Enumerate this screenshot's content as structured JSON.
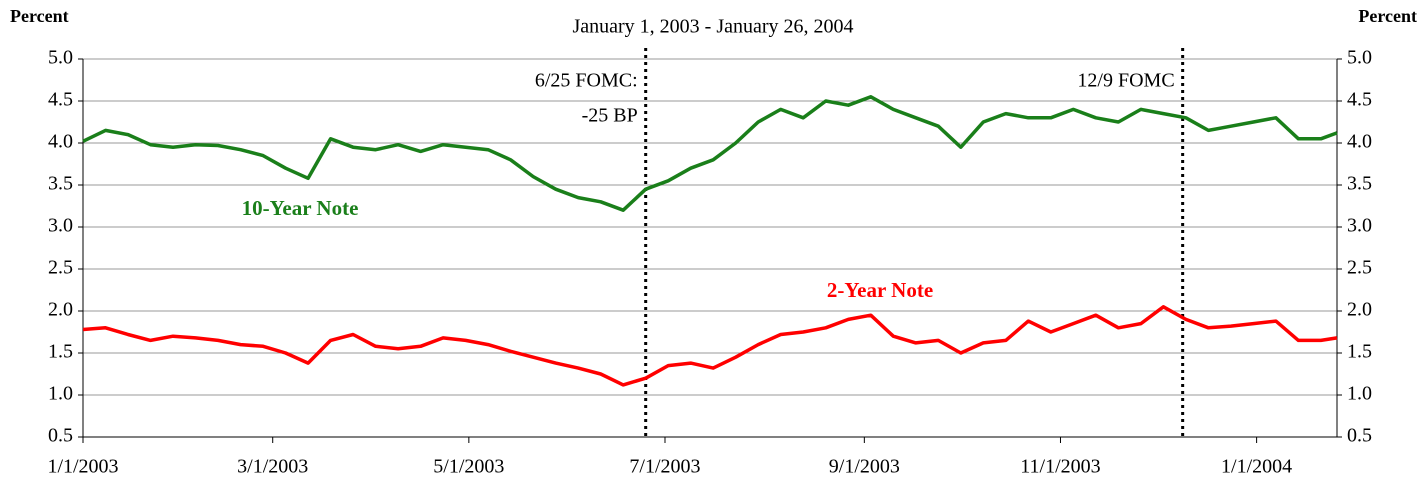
{
  "chart_data": {
    "type": "line",
    "subtitle": "January 1, 2003 - January 26, 2004",
    "y_label": "Percent",
    "y2_label": "Percent",
    "x": [
      "1/1/2003",
      "1/8/2003",
      "1/15/2003",
      "1/22/2003",
      "1/29/2003",
      "2/5/2003",
      "2/12/2003",
      "2/19/2003",
      "2/26/2003",
      "3/5/2003",
      "3/12/2003",
      "3/19/2003",
      "3/26/2003",
      "4/2/2003",
      "4/9/2003",
      "4/16/2003",
      "4/23/2003",
      "4/30/2003",
      "5/7/2003",
      "5/14/2003",
      "5/21/2003",
      "5/28/2003",
      "6/4/2003",
      "6/11/2003",
      "6/18/2003",
      "6/25/2003",
      "7/2/2003",
      "7/9/2003",
      "7/16/2003",
      "7/23/2003",
      "7/30/2003",
      "8/6/2003",
      "8/13/2003",
      "8/20/2003",
      "8/27/2003",
      "9/3/2003",
      "9/10/2003",
      "9/17/2003",
      "9/24/2003",
      "10/1/2003",
      "10/8/2003",
      "10/15/2003",
      "10/22/2003",
      "10/29/2003",
      "11/5/2003",
      "11/12/2003",
      "11/19/2003",
      "11/26/2003",
      "12/3/2003",
      "12/10/2003",
      "12/17/2003",
      "12/24/2003",
      "12/31/2003",
      "1/7/2004",
      "1/14/2004",
      "1/21/2004",
      "1/26/2004"
    ],
    "series": [
      {
        "name": "10-Year Note",
        "color": "#1a7f1a",
        "values": [
          4.02,
          4.15,
          4.1,
          3.98,
          3.95,
          3.98,
          3.97,
          3.92,
          3.85,
          3.7,
          3.58,
          4.05,
          3.95,
          3.92,
          3.98,
          3.9,
          3.98,
          3.95,
          3.92,
          3.8,
          3.6,
          3.45,
          3.35,
          3.3,
          3.2,
          3.45,
          3.55,
          3.7,
          3.8,
          4.0,
          4.25,
          4.4,
          4.3,
          4.5,
          4.45,
          4.55,
          4.4,
          4.3,
          4.2,
          3.95,
          4.25,
          4.35,
          4.3,
          4.3,
          4.4,
          4.3,
          4.25,
          4.4,
          4.35,
          4.3,
          4.15,
          4.2,
          4.25,
          4.3,
          4.05,
          4.05,
          4.12
        ]
      },
      {
        "name": "2-Year Note",
        "color": "#ff0000",
        "values": [
          1.78,
          1.8,
          1.72,
          1.65,
          1.7,
          1.68,
          1.65,
          1.6,
          1.58,
          1.5,
          1.38,
          1.65,
          1.72,
          1.58,
          1.55,
          1.58,
          1.68,
          1.65,
          1.6,
          1.52,
          1.45,
          1.38,
          1.32,
          1.25,
          1.12,
          1.2,
          1.35,
          1.38,
          1.32,
          1.45,
          1.6,
          1.72,
          1.75,
          1.8,
          1.9,
          1.95,
          1.7,
          1.62,
          1.65,
          1.5,
          1.62,
          1.65,
          1.88,
          1.75,
          1.85,
          1.95,
          1.8,
          1.85,
          2.05,
          1.9,
          1.8,
          1.82,
          1.85,
          1.88,
          1.65,
          1.65,
          1.68
        ]
      }
    ],
    "xlim": [
      "1/1/2003",
      "1/26/2004"
    ],
    "xticks": [
      "1/1/2003",
      "3/1/2003",
      "5/1/2003",
      "7/1/2003",
      "9/1/2003",
      "11/1/2003",
      "1/1/2004"
    ],
    "ylim": [
      0.5,
      5
    ],
    "yticks": [
      0.5,
      {
        "value": 1,
        "label": "1.0"
      },
      1.5,
      {
        "value": 2,
        "label": "2.0"
      },
      2.5,
      {
        "value": 3,
        "label": "3.0"
      },
      3.5,
      {
        "value": 4,
        "label": "4.0"
      },
      4.5,
      {
        "value": 5,
        "label": "5.0"
      }
    ],
    "y2lim": [
      0.5,
      5
    ],
    "y2ticks": [
      0.5,
      {
        "value": 1,
        "label": "1.0"
      },
      1.5,
      {
        "value": 2,
        "label": "2.0"
      },
      2.5,
      {
        "value": 3,
        "label": "3.0"
      },
      3.5,
      {
        "value": 4,
        "label": "4.0"
      },
      4.5,
      {
        "value": 5,
        "label": "5.0"
      }
    ],
    "grid": true,
    "annotations": [
      {
        "x": "6/25/2003",
        "text": [
          "6/25 FOMC:",
          "-25 BP"
        ]
      },
      {
        "x": "12/9/2003",
        "text": [
          "12/9 FOMC"
        ]
      }
    ]
  }
}
